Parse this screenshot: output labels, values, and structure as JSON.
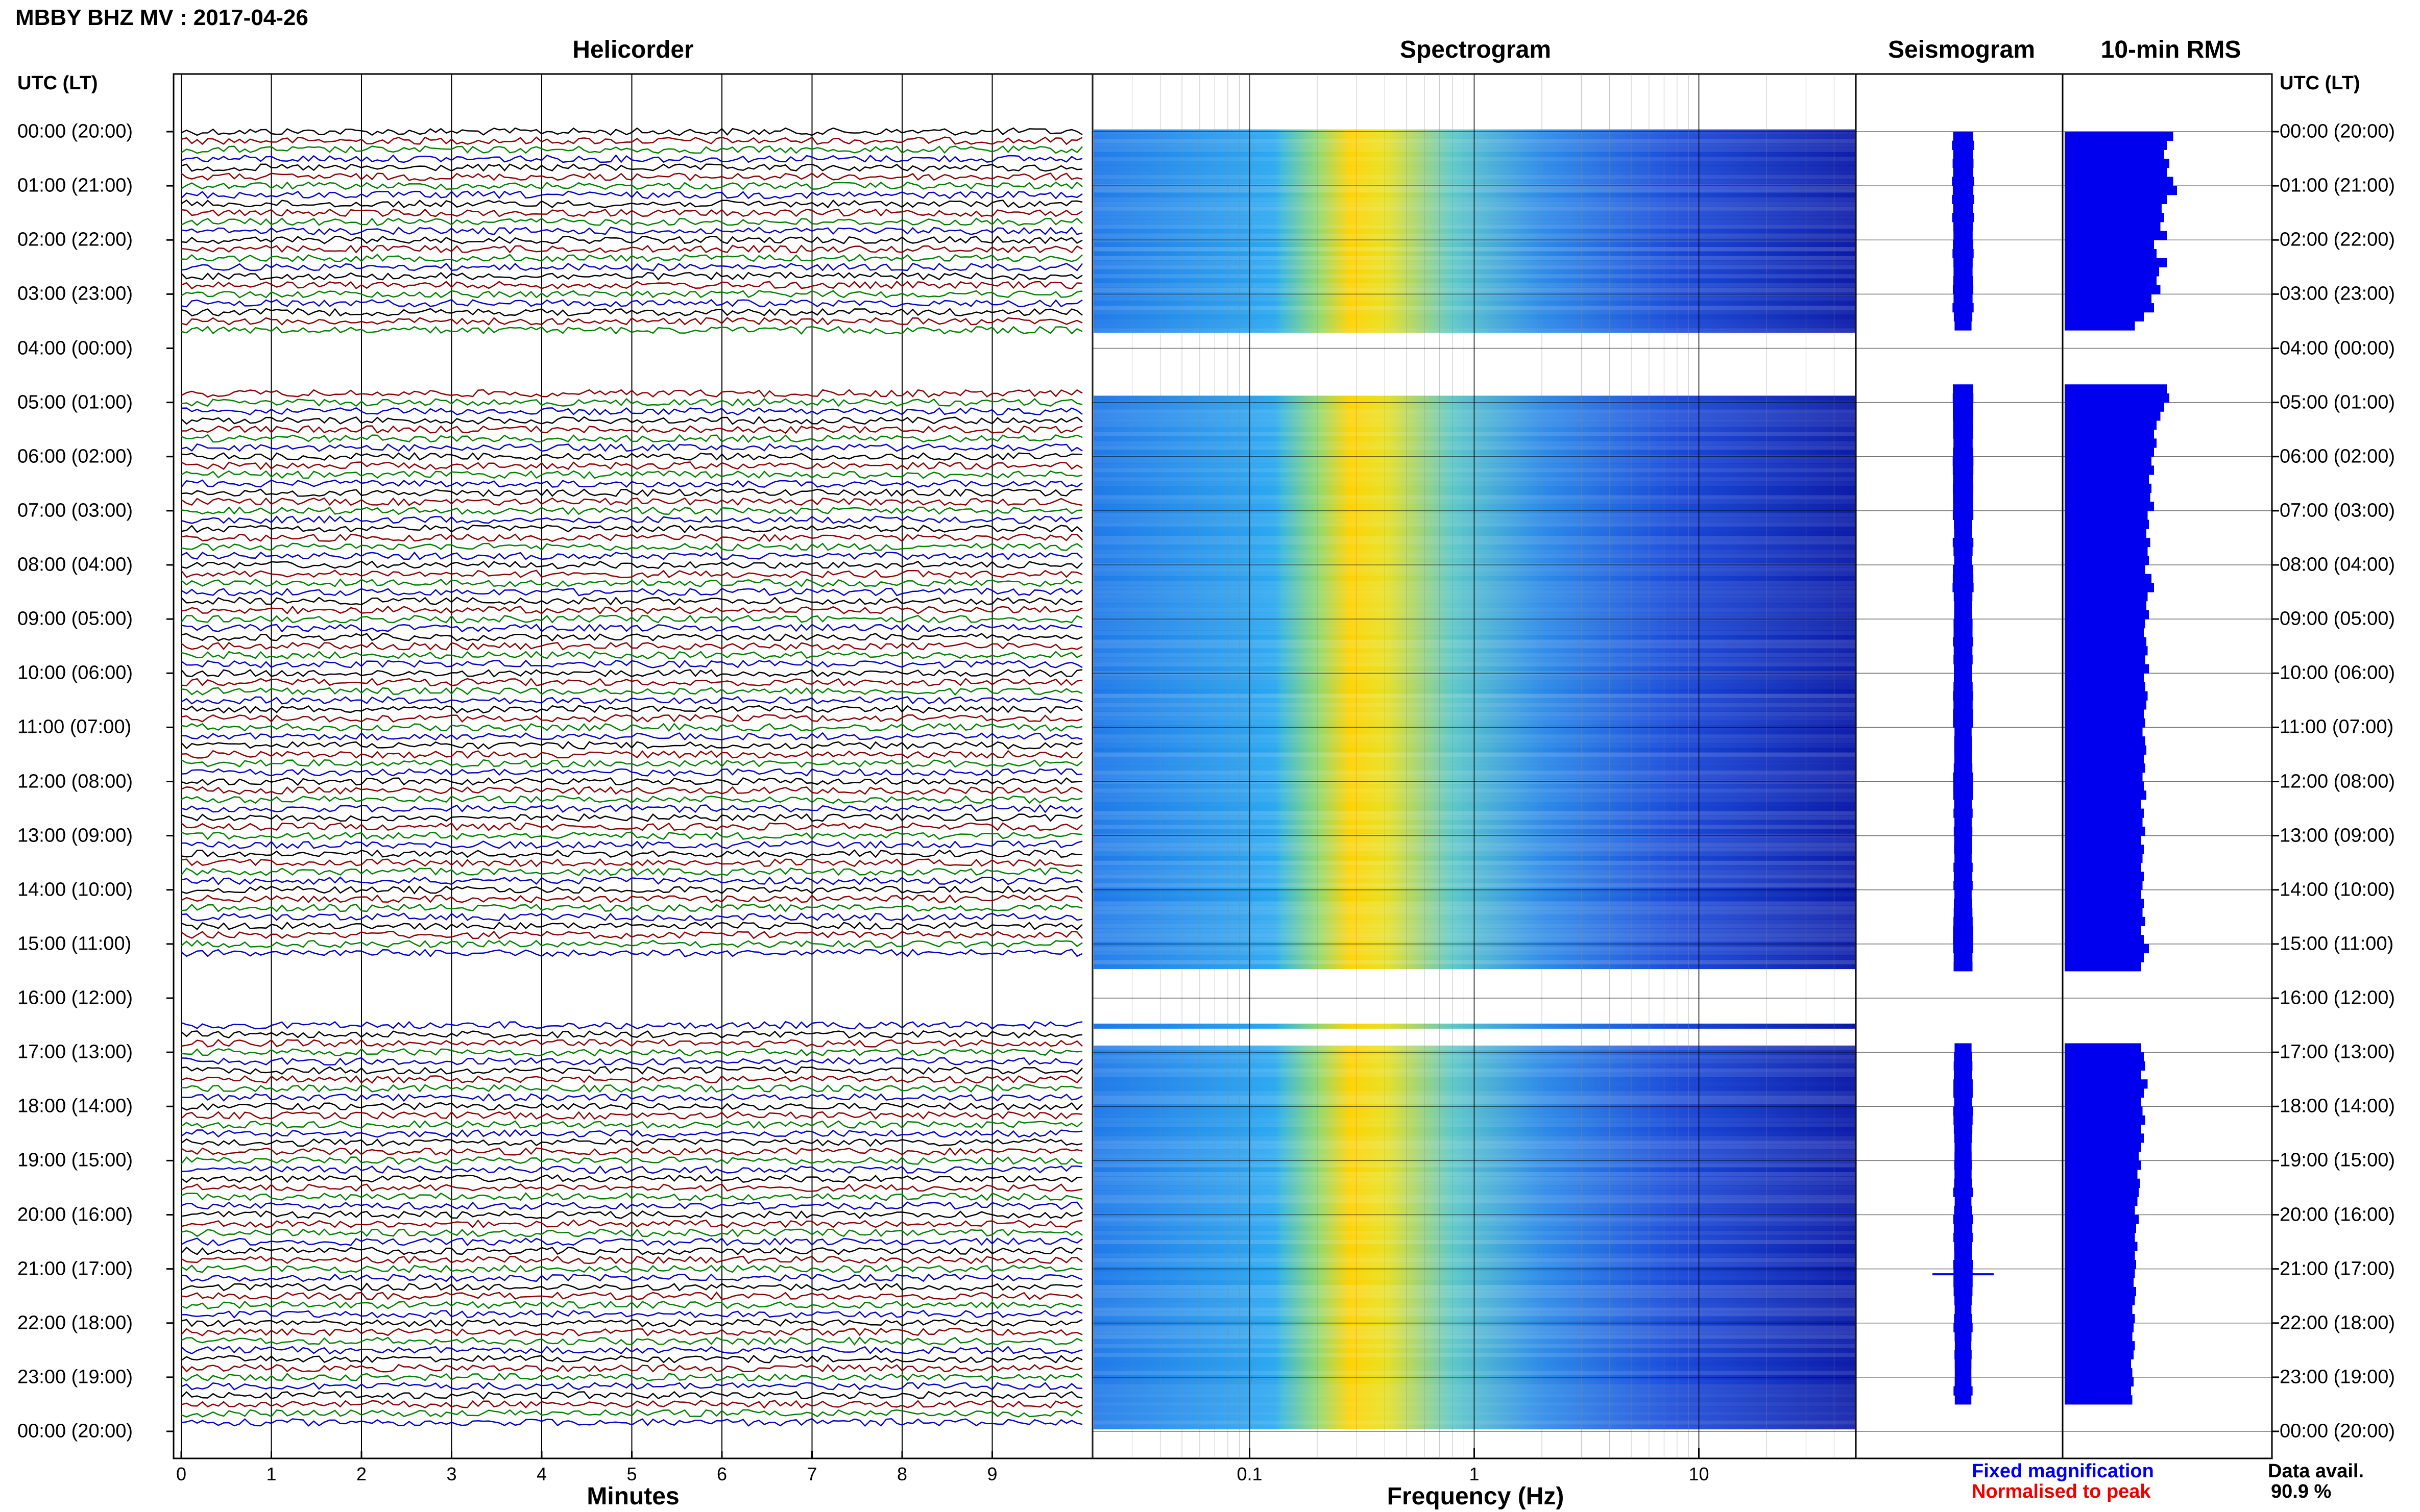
{
  "title": "MBBY BHZ MV : 2017-04-26",
  "panels": {
    "helicorder": "Helicorder",
    "spectrogram": "Spectrogram",
    "seismogram": "Seismogram",
    "rms": "10-min RMS"
  },
  "time_axis_header": "UTC (LT)",
  "time_labels": [
    "00:00 (20:00)",
    "01:00 (21:00)",
    "02:00 (22:00)",
    "03:00 (23:00)",
    "04:00 (00:00)",
    "05:00 (01:00)",
    "06:00 (02:00)",
    "07:00 (03:00)",
    "08:00 (04:00)",
    "09:00 (05:00)",
    "10:00 (06:00)",
    "11:00 (07:00)",
    "12:00 (08:00)",
    "13:00 (09:00)",
    "14:00 (10:00)",
    "15:00 (11:00)",
    "16:00 (12:00)",
    "17:00 (13:00)",
    "18:00 (14:00)",
    "19:00 (15:00)",
    "20:00 (16:00)",
    "21:00 (17:00)",
    "22:00 (18:00)",
    "23:00 (19:00)",
    "00:00 (20:00)"
  ],
  "x_axes": {
    "helicorder": {
      "label": "Minutes",
      "ticks": [
        "0",
        "1",
        "2",
        "3",
        "4",
        "5",
        "6",
        "7",
        "8",
        "9"
      ]
    },
    "spectrogram": {
      "label": "Frequency (Hz)",
      "ticks": [
        "0.1",
        "1",
        "10"
      ],
      "scale": "log"
    }
  },
  "legend": {
    "fixed": "Fixed magnification",
    "normalised": "Normalised to peak"
  },
  "data_avail": {
    "label": "Data avail.",
    "value": "90.9 %"
  },
  "colors": {
    "trace_cycle": [
      "#000000",
      "#8b0000",
      "#008000",
      "#0000cd"
    ],
    "rms_bar": "#0000ee",
    "spectro_low": "#0000a0",
    "spectro_high": "#ffa000"
  },
  "chart_data": [
    {
      "type": "line",
      "title": "Helicorder",
      "xlabel": "Minutes",
      "x_range": [
        0,
        10
      ],
      "y_ticks": [
        "00:00 (20:00)",
        "01:00 (21:00)",
        "02:00 (22:00)",
        "03:00 (23:00)",
        "04:00 (00:00)",
        "05:00 (01:00)",
        "06:00 (02:00)",
        "07:00 (03:00)",
        "08:00 (04:00)",
        "09:00 (05:00)",
        "10:00 (06:00)",
        "11:00 (07:00)",
        "12:00 (08:00)",
        "13:00 (09:00)",
        "14:00 (10:00)",
        "15:00 (11:00)",
        "16:00 (12:00)",
        "17:00 (13:00)",
        "18:00 (14:00)",
        "19:00 (15:00)",
        "20:00 (16:00)",
        "21:00 (17:00)",
        "22:00 (18:00)",
        "23:00 (19:00)",
        "00:00 (20:00)"
      ],
      "gaps_utc_hours": [
        [
          3.7,
          4.8
        ],
        [
          15.3,
          16.4
        ]
      ]
    },
    {
      "type": "heatmap",
      "title": "Spectrogram",
      "xlabel": "Frequency (Hz)",
      "x_scale": "log",
      "x_range": [
        0.02,
        50
      ],
      "peak_frequency_hz": 0.25,
      "gaps_utc_hours": [
        [
          3.7,
          4.9
        ],
        [
          15.5,
          16.9
        ]
      ]
    },
    {
      "type": "bar",
      "title": "10-min RMS",
      "categories_utc_hours_start": 0,
      "bin_minutes": 10,
      "values_relative": [
        0.85,
        0.8,
        0.78,
        0.82,
        0.8,
        0.85,
        0.88,
        0.8,
        0.76,
        0.78,
        0.75,
        0.8,
        0.7,
        0.72,
        0.8,
        0.74,
        0.72,
        0.75,
        0.68,
        0.7,
        0.62,
        0.55,
        -1,
        -1,
        -1,
        -1,
        -1,
        -1,
        0.8,
        0.82,
        0.78,
        0.75,
        0.72,
        0.7,
        0.72,
        0.7,
        0.68,
        0.7,
        0.66,
        0.68,
        0.67,
        0.7,
        0.65,
        0.66,
        0.64,
        0.67,
        0.65,
        0.66,
        0.63,
        0.68,
        0.7,
        0.65,
        0.64,
        0.66,
        0.63,
        0.62,
        0.64,
        0.65,
        0.63,
        0.66,
        0.62,
        0.63,
        0.65,
        0.64,
        0.62,
        0.63,
        0.61,
        0.63,
        0.64,
        0.62,
        0.63,
        0.61,
        0.62,
        0.64,
        0.6,
        0.62,
        0.61,
        0.63,
        0.6,
        0.62,
        0.61,
        0.6,
        0.62,
        0.61,
        0.6,
        0.62,
        0.61,
        0.63,
        0.6,
        0.62,
        0.66,
        0.62,
        0.6,
        -1,
        -1,
        -1,
        -1,
        -1,
        -1,
        -1,
        -1,
        0.6,
        0.62,
        0.63,
        0.6,
        0.65,
        0.62,
        0.6,
        0.61,
        0.63,
        0.6,
        0.62,
        0.6,
        0.58,
        0.6,
        0.57,
        0.59,
        0.58,
        0.57,
        0.55,
        0.58,
        0.56,
        0.55,
        0.57,
        0.55,
        0.56,
        0.55,
        0.54,
        0.56,
        0.55,
        0.53,
        0.55,
        0.54,
        0.53,
        0.55,
        0.54,
        0.52,
        0.53,
        0.54,
        0.52,
        0.53
      ]
    }
  ]
}
